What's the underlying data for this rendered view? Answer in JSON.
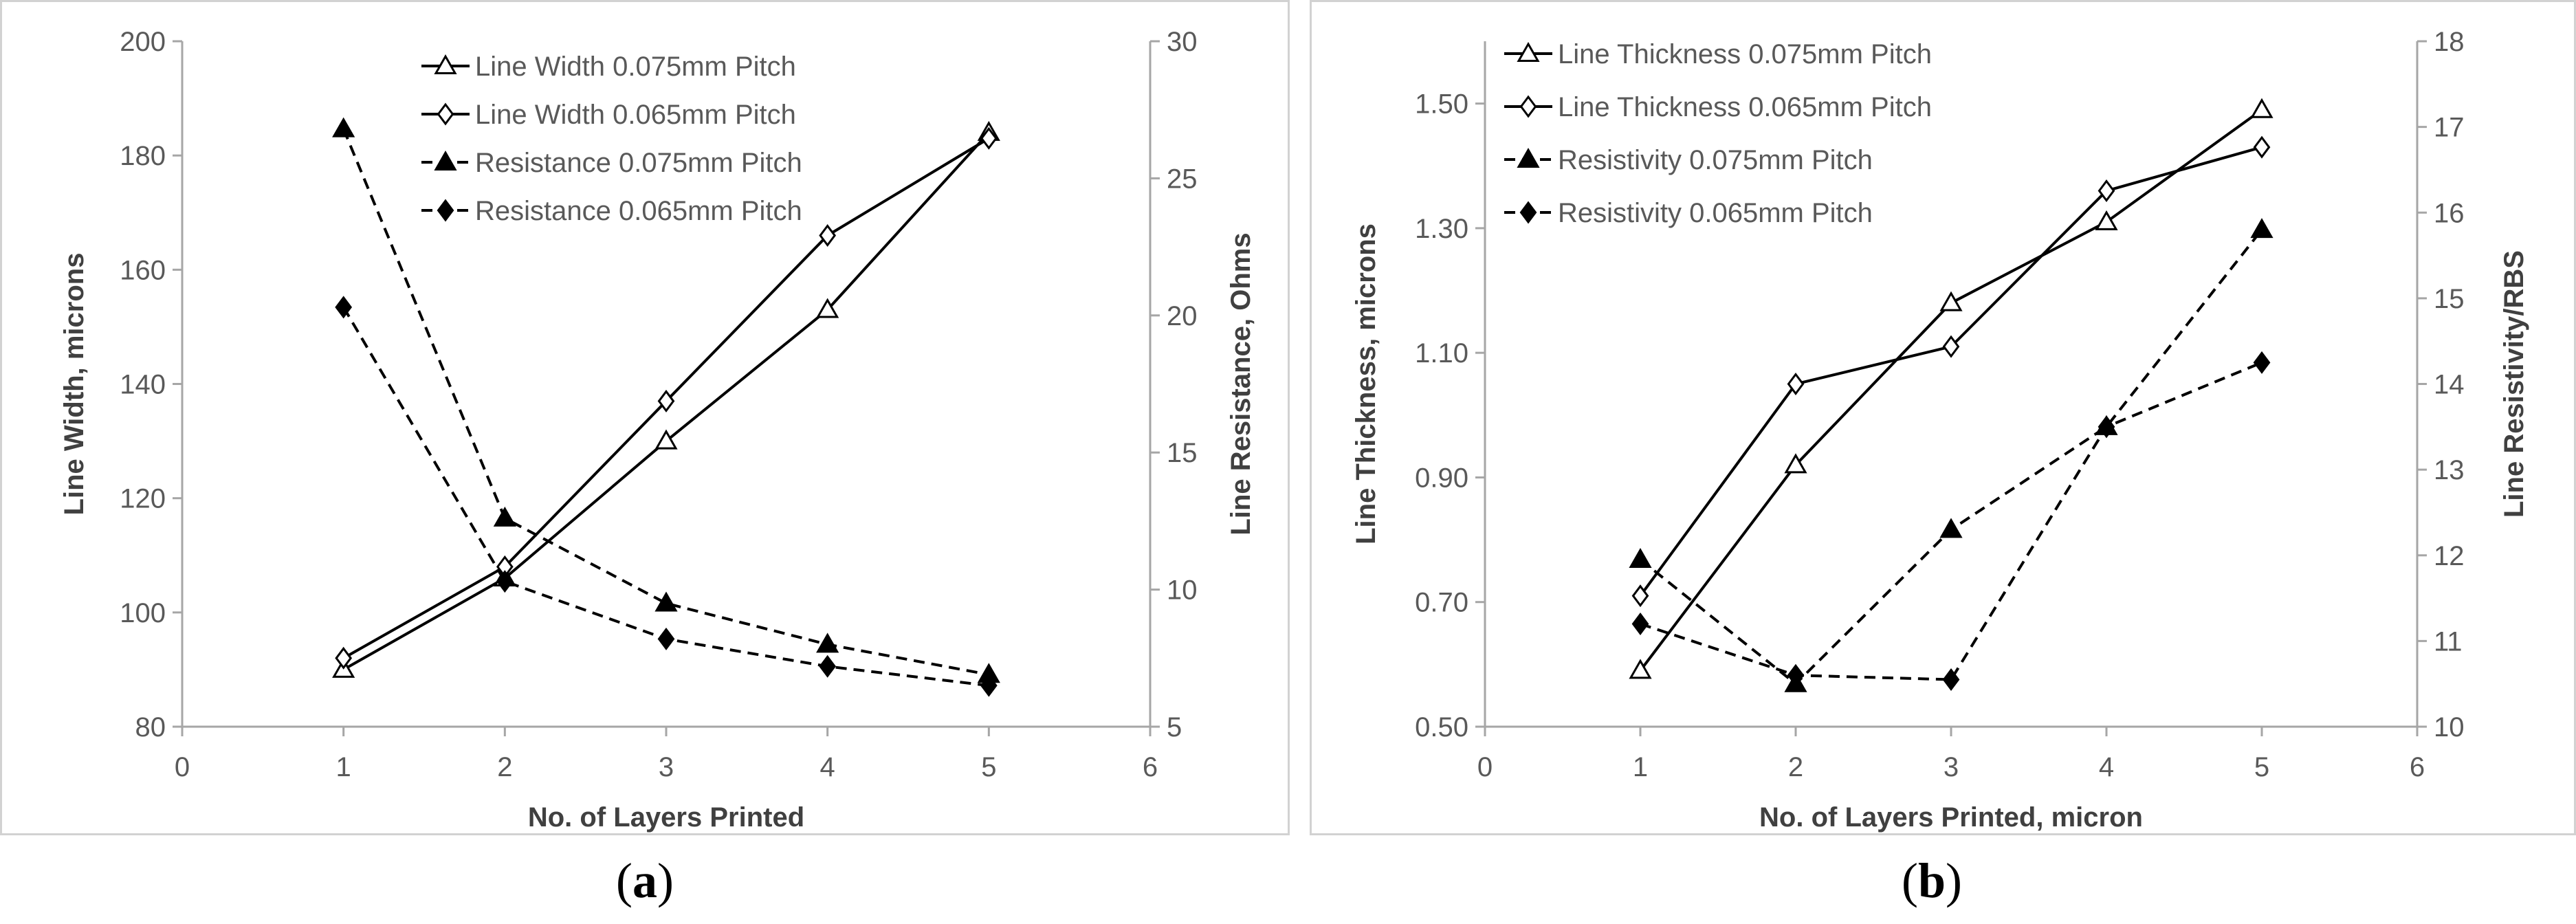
{
  "figure": {
    "caption_a": "a",
    "caption_b": "b"
  },
  "chart_data": [
    {
      "id": "a",
      "type": "line",
      "x": [
        1,
        2,
        3,
        4,
        5
      ],
      "xlabel": "No. of Layers Printed",
      "ylabel": "Line Width, microns",
      "y2label": "Line Resistance, Ohms",
      "xlim": [
        0,
        6
      ],
      "ylim": [
        80,
        200
      ],
      "y2lim": [
        5,
        30
      ],
      "xticks": [
        "0",
        "1",
        "2",
        "3",
        "4",
        "5",
        "6"
      ],
      "yticks": [
        "80",
        "100",
        "120",
        "140",
        "160",
        "180",
        "200"
      ],
      "y2ticks": [
        "5",
        "10",
        "15",
        "20",
        "25",
        "30"
      ],
      "grid": false,
      "legend_position": "top-center",
      "series": [
        {
          "name": "Line Width 0.075mm Pitch",
          "axis": "left",
          "marker": "open-triangle",
          "dashed": false,
          "values": [
            90,
            106,
            130,
            153,
            184
          ]
        },
        {
          "name": "Line Width 0.065mm Pitch",
          "axis": "left",
          "marker": "open-diamond",
          "dashed": false,
          "values": [
            92,
            108,
            137,
            166,
            183
          ]
        },
        {
          "name": "Resistance 0.075mm Pitch",
          "axis": "right",
          "marker": "filled-triangle",
          "dashed": true,
          "values": [
            26.8,
            12.6,
            9.5,
            8.0,
            6.9
          ]
        },
        {
          "name": "Resistance 0.065mm Pitch",
          "axis": "right",
          "marker": "filled-diamond",
          "dashed": true,
          "values": [
            20.3,
            10.3,
            8.2,
            7.2,
            6.5
          ]
        }
      ]
    },
    {
      "id": "b",
      "type": "line",
      "x": [
        1,
        2,
        3,
        4,
        5
      ],
      "xlabel": "No. of Layers Printed, micron",
      "ylabel": "Line Thickness, microns",
      "y2label": "Line Resistivity/RBS",
      "xlim": [
        0,
        6
      ],
      "ylim": [
        0.5,
        1.6
      ],
      "y2lim": [
        10,
        18
      ],
      "xticks": [
        "0",
        "1",
        "2",
        "3",
        "4",
        "5",
        "6"
      ],
      "yticks": [
        "0.50",
        "0.70",
        "0.90",
        "1.10",
        "1.30",
        "1.50"
      ],
      "ytick_values": [
        0.5,
        0.7,
        0.9,
        1.1,
        1.3,
        1.5
      ],
      "y2ticks": [
        "10",
        "11",
        "12",
        "13",
        "14",
        "15",
        "16",
        "17",
        "18"
      ],
      "grid": false,
      "legend_position": "top-left",
      "series": [
        {
          "name": "Line Thickness 0.075mm Pitch",
          "axis": "left",
          "marker": "open-triangle",
          "dashed": false,
          "values": [
            0.59,
            0.92,
            1.18,
            1.31,
            1.49
          ]
        },
        {
          "name": "Line Thickness 0.065mm Pitch",
          "axis": "left",
          "marker": "open-diamond",
          "dashed": false,
          "values": [
            0.71,
            1.05,
            1.11,
            1.36,
            1.43
          ]
        },
        {
          "name": "Resistivity 0.075mm Pitch",
          "axis": "right",
          "marker": "filled-triangle",
          "dashed": true,
          "values": [
            11.95,
            10.5,
            12.3,
            13.5,
            15.8
          ]
        },
        {
          "name": "Resistivity 0.065mm Pitch",
          "axis": "right",
          "marker": "filled-diamond",
          "dashed": true,
          "values": [
            11.2,
            10.6,
            10.55,
            13.5,
            14.25
          ]
        }
      ]
    }
  ]
}
